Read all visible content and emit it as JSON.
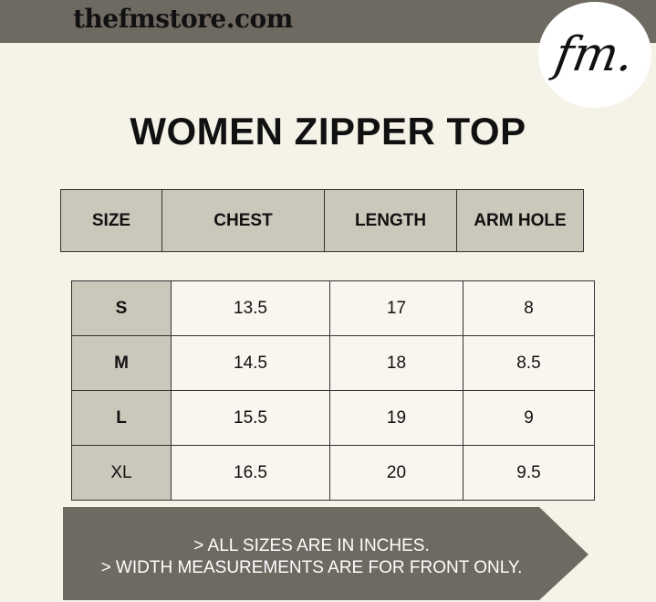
{
  "header": {
    "site": "thefmstore.com",
    "logo_text": "fm."
  },
  "title": "WOMEN ZIPPER TOP",
  "columns": [
    "SIZE",
    "CHEST",
    "LENGTH",
    "ARM HOLE"
  ],
  "rows": [
    {
      "size": "S",
      "chest": "13.5",
      "length": "17",
      "arm_hole": "8"
    },
    {
      "size": "M",
      "chest": "14.5",
      "length": "18",
      "arm_hole": "8.5"
    },
    {
      "size": "L",
      "chest": "15.5",
      "length": "19",
      "arm_hole": "9"
    },
    {
      "size": "XL",
      "chest": "16.5",
      "length": "20",
      "arm_hole": "9.5"
    }
  ],
  "notes": [
    "> ALL SIZES ARE IN INCHES.",
    "> WIDTH MEASUREMENTS ARE FOR FRONT ONLY."
  ],
  "colors": {
    "band": "#6e6a62",
    "background": "#f5f2e8",
    "cell_fill": "#cbc7bb"
  }
}
